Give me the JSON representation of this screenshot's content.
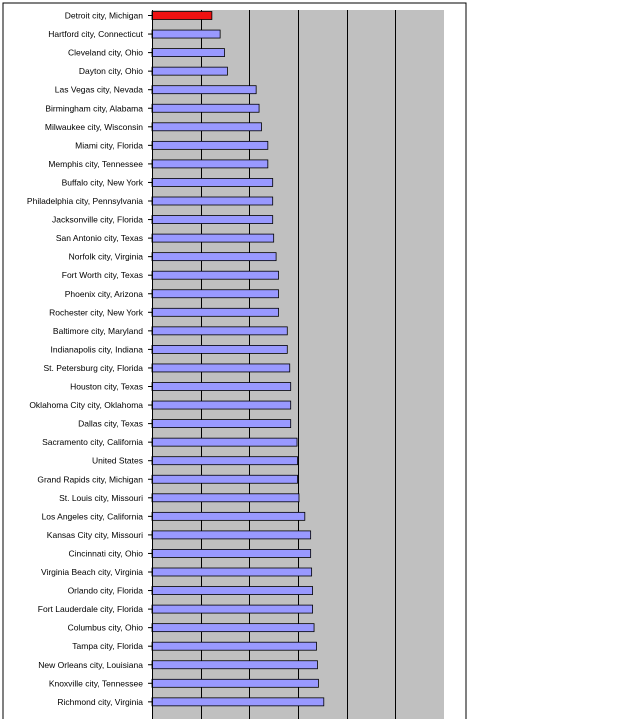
{
  "chart_data": {
    "type": "bar",
    "orientation": "horizontal",
    "title": "",
    "xlabel": "",
    "ylabel": "",
    "grid": true,
    "legend": "none",
    "xlim": [
      0,
      6
    ],
    "colors": {
      "highlight": "#ee1111",
      "bar": "#9999ff",
      "plot_area": "#c0c0c0",
      "outline": "#000000",
      "background": "#ffffff"
    },
    "highlight_category": "Detroit city, Michigan",
    "categories": [
      "Detroit city, Michigan",
      "Hartford city, Connecticut",
      "Cleveland city, Ohio",
      "Dayton city, Ohio",
      "Las Vegas city, Nevada",
      "Birmingham city, Alabama",
      "Milwaukee city, Wisconsin",
      "Miami city, Florida",
      "Memphis city, Tennessee",
      "Buffalo city, New York",
      "Philadelphia city, Pennsylvania",
      "Jacksonville city, Florida",
      "San Antonio city, Texas",
      "Norfolk city, Virginia",
      "Fort Worth city, Texas",
      "Phoenix city, Arizona",
      "Rochester city, New York",
      "Baltimore city, Maryland",
      "Indianapolis city, Indiana",
      "St. Petersburg city, Florida",
      "Houston city, Texas",
      "Oklahoma City city, Oklahoma",
      "Dallas city, Texas",
      "Sacramento city, California",
      "United States",
      "Grand Rapids city, Michigan",
      "St. Louis city, Missouri",
      "Los Angeles city, California",
      "Kansas City city, Missouri",
      "Cincinnati city, Ohio",
      "Virginia Beach city, Virginia",
      "Orlando city, Florida",
      "Fort Lauderdale city, Florida",
      "Columbus city, Ohio",
      "Tampa city, Florida",
      "New Orleans city, Louisiana",
      "Knoxville city, Tennessee",
      "Richmond city, Virginia"
    ],
    "values": [
      1.23,
      1.4,
      1.49,
      1.55,
      2.14,
      2.2,
      2.25,
      2.38,
      2.38,
      2.48,
      2.48,
      2.48,
      2.5,
      2.55,
      2.6,
      2.6,
      2.6,
      2.78,
      2.78,
      2.83,
      2.85,
      2.85,
      2.85,
      2.98,
      2.99,
      2.99,
      3.02,
      3.14,
      3.26,
      3.26,
      3.28,
      3.3,
      3.3,
      3.33,
      3.38,
      3.4,
      3.42,
      3.53
    ]
  }
}
